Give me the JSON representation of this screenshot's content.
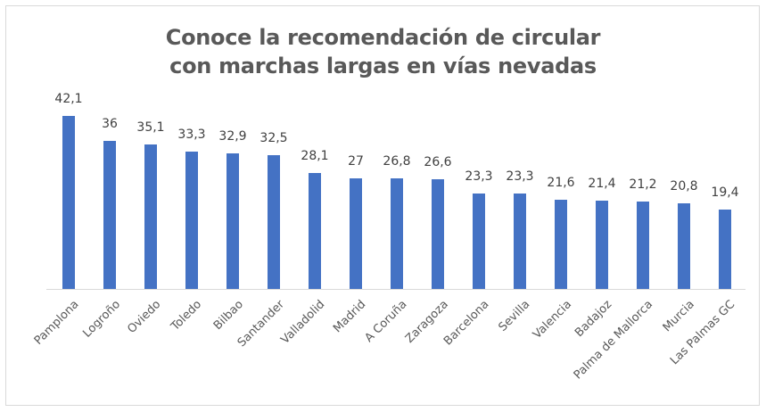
{
  "chart_data": {
    "type": "bar",
    "title": "Conoce la recomendación de circular con marchas largas en vías nevadas",
    "title_lines": [
      "Conoce la recomendación de circular",
      "con marchas largas en vías nevadas"
    ],
    "categories": [
      "Pamplona",
      "Logroño",
      "Oviedo",
      "Toledo",
      "Bilbao",
      "Santander",
      "Valladolid",
      "Madrid",
      "A Coruña",
      "Zaragoza",
      "Barcelona",
      "Sevilla",
      "Valencia",
      "Badajoz",
      "Palma de Mallorca",
      "Murcia",
      "Las Palmas GC"
    ],
    "values": [
      42.1,
      36,
      35.1,
      33.3,
      32.9,
      32.5,
      28.1,
      27,
      26.8,
      26.6,
      23.3,
      23.3,
      21.6,
      21.4,
      21.2,
      20.8,
      19.4
    ],
    "value_labels": [
      "42,1",
      "36",
      "35,1",
      "33,3",
      "32,9",
      "32,5",
      "28,1",
      "27",
      "26,8",
      "26,6",
      "23,3",
      "23,3",
      "21,6",
      "21,4",
      "21,2",
      "20,8",
      "19,4"
    ],
    "xlabel": "",
    "ylabel": "",
    "ylim": [
      0,
      45
    ],
    "grid": false,
    "legend": "none",
    "bar_color": "#4472C4"
  }
}
